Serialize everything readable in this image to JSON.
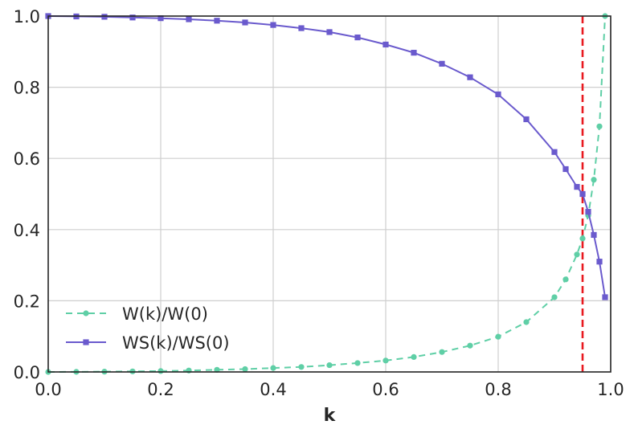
{
  "chart_data": {
    "type": "line",
    "xlabel": "k",
    "ylabel": "",
    "title": "",
    "xlim": [
      0.0,
      1.0
    ],
    "ylim": [
      0.0,
      1.0
    ],
    "xticks": [
      "0.0",
      "0.2",
      "0.4",
      "0.6",
      "0.8",
      "1.0"
    ],
    "yticks": [
      "0.0",
      "0.2",
      "0.4",
      "0.6",
      "0.8",
      "1.0"
    ],
    "grid": true,
    "legend_position": "lower-left",
    "series": [
      {
        "name": "W(k)/W(0)",
        "color": "#5fcfa6",
        "line_style": "dashed",
        "marker": "circle",
        "x": [
          0.0,
          0.05,
          0.1,
          0.15,
          0.2,
          0.25,
          0.3,
          0.35,
          0.4,
          0.45,
          0.5,
          0.55,
          0.6,
          0.65,
          0.7,
          0.75,
          0.8,
          0.85,
          0.9,
          0.92,
          0.94,
          0.95,
          0.96,
          0.97,
          0.98,
          0.99
        ],
        "values": [
          0.0,
          0.0003,
          0.0008,
          0.0015,
          0.0025,
          0.004,
          0.006,
          0.008,
          0.011,
          0.014,
          0.019,
          0.025,
          0.032,
          0.042,
          0.056,
          0.074,
          0.099,
          0.14,
          0.21,
          0.26,
          0.33,
          0.375,
          0.44,
          0.54,
          0.69,
          1.0
        ]
      },
      {
        "name": "WS(k)/WS(0)",
        "color": "#6a5acd",
        "line_style": "solid",
        "marker": "square",
        "x": [
          0.0,
          0.05,
          0.1,
          0.15,
          0.2,
          0.25,
          0.3,
          0.35,
          0.4,
          0.45,
          0.5,
          0.55,
          0.6,
          0.65,
          0.7,
          0.75,
          0.8,
          0.85,
          0.9,
          0.92,
          0.94,
          0.95,
          0.96,
          0.97,
          0.98,
          0.99
        ],
        "values": [
          1.0,
          0.999,
          0.998,
          0.996,
          0.994,
          0.991,
          0.987,
          0.982,
          0.975,
          0.966,
          0.955,
          0.94,
          0.92,
          0.897,
          0.866,
          0.828,
          0.78,
          0.71,
          0.618,
          0.57,
          0.52,
          0.5,
          0.45,
          0.385,
          0.31,
          0.21
        ]
      }
    ],
    "annotations": [
      {
        "type": "vline",
        "x": 0.95,
        "color": "#e8191f",
        "line_style": "dashed"
      }
    ]
  }
}
